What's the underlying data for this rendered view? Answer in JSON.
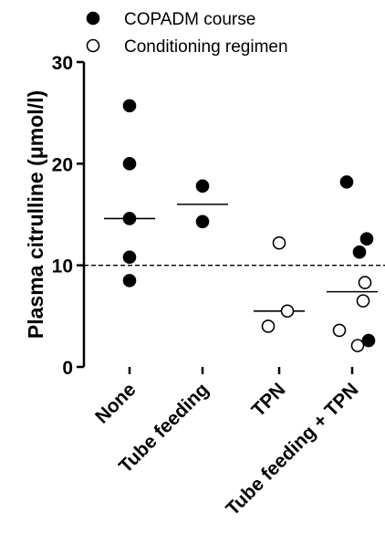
{
  "chart_data": {
    "type": "scatter",
    "title": "",
    "xlabel": "",
    "ylabel": "Plasma citrulline (μmol/l)",
    "ylim": [
      0,
      30
    ],
    "yticks": [
      0,
      10,
      20,
      30
    ],
    "categories": [
      "None",
      "Tube feeding",
      "TPN",
      "Tube feeding + TPN"
    ],
    "reference_line": {
      "y": 10,
      "style": "dashed"
    },
    "legend": {
      "placement": "top",
      "entries": [
        {
          "label": "COPADM course",
          "marker": "filled-circle"
        },
        {
          "label": "Conditioning regimen",
          "marker": "open-circle"
        }
      ]
    },
    "series": [
      {
        "name": "COPADM course",
        "marker": "filled",
        "points": [
          {
            "category": "None",
            "y": 25.7
          },
          {
            "category": "None",
            "y": 20.0
          },
          {
            "category": "None",
            "y": 14.6
          },
          {
            "category": "None",
            "y": 10.8
          },
          {
            "category": "None",
            "y": 8.5
          },
          {
            "category": "Tube feeding",
            "y": 17.8
          },
          {
            "category": "Tube feeding",
            "y": 14.3
          },
          {
            "category": "Tube feeding + TPN",
            "y": 18.2
          },
          {
            "category": "Tube feeding + TPN",
            "y": 12.6
          },
          {
            "category": "Tube feeding + TPN",
            "y": 11.3
          },
          {
            "category": "Tube feeding + TPN",
            "y": 2.6
          }
        ]
      },
      {
        "name": "Conditioning regimen",
        "marker": "open",
        "points": [
          {
            "category": "TPN",
            "y": 12.2
          },
          {
            "category": "TPN",
            "y": 5.5
          },
          {
            "category": "TPN",
            "y": 4.0
          },
          {
            "category": "Tube feeding + TPN",
            "y": 8.3
          },
          {
            "category": "Tube feeding + TPN",
            "y": 6.5
          },
          {
            "category": "Tube feeding + TPN",
            "y": 3.6
          },
          {
            "category": "Tube feeding + TPN",
            "y": 2.1
          }
        ]
      }
    ],
    "medians": [
      {
        "category": "None",
        "y": 14.6
      },
      {
        "category": "Tube feeding",
        "y": 16.0
      },
      {
        "category": "TPN",
        "y": 5.5
      },
      {
        "category": "Tube feeding + TPN",
        "y": 7.4
      }
    ]
  }
}
